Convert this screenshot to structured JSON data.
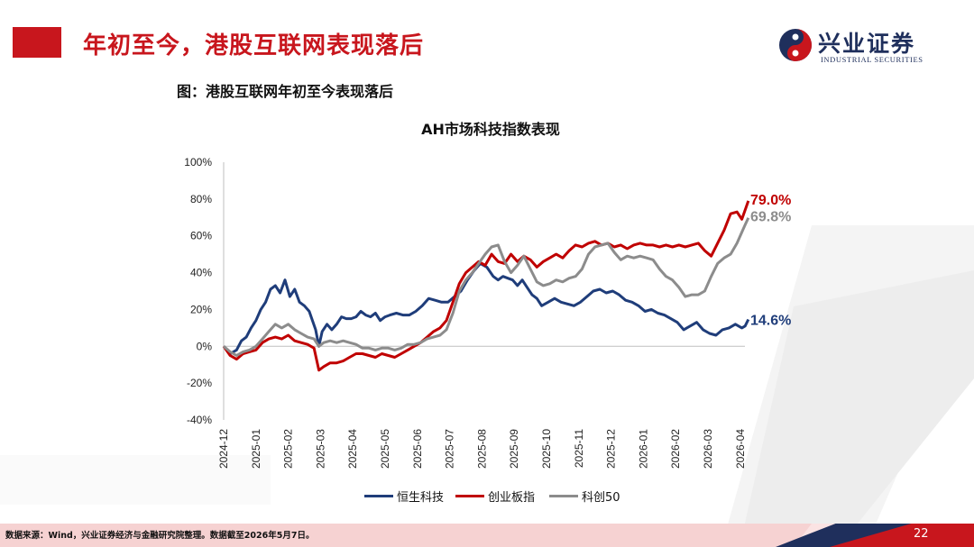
{
  "header": {
    "title": "年初至今，港股互联网表现落后",
    "logo_cn": "兴业证券",
    "logo_en": "INDUSTRIAL SECURITIES"
  },
  "figure_label": "图：港股互联网年初至今表现落后",
  "colors": {
    "brand_red": "#c8161d",
    "navy": "#1f3d7a",
    "red_series": "#c00000",
    "gray_series": "#8c8c8c"
  },
  "chart_data": {
    "type": "line",
    "title": "AH市场科技指数表现",
    "ylim": [
      -40,
      100
    ],
    "yticks": [
      "100%",
      "80%",
      "60%",
      "40%",
      "20%",
      "0%",
      "-20%",
      "-40%"
    ],
    "ytick_values": [
      100,
      80,
      60,
      40,
      20,
      0,
      -20,
      -40
    ],
    "xticks": [
      "2024-12",
      "2025-01",
      "2025-02",
      "2025-03",
      "2025-04",
      "2025-05",
      "2025-06",
      "2025-07",
      "2025-08",
      "2025-09",
      "2025-10",
      "2025-11",
      "2025-12",
      "2026-01",
      "2026-02",
      "2026-03",
      "2026-04"
    ],
    "grid": false,
    "legend_position": "bottom",
    "series": [
      {
        "name": "恒生科技",
        "color": "#1f3d7a",
        "end_label": "14.6%",
        "points": [
          [
            0,
            0
          ],
          [
            0.2,
            -4
          ],
          [
            0.4,
            -2
          ],
          [
            0.55,
            3
          ],
          [
            0.7,
            5
          ],
          [
            0.85,
            10
          ],
          [
            1.0,
            14
          ],
          [
            1.15,
            20
          ],
          [
            1.3,
            24
          ],
          [
            1.45,
            31
          ],
          [
            1.6,
            33
          ],
          [
            1.75,
            29
          ],
          [
            1.9,
            36
          ],
          [
            2.05,
            27
          ],
          [
            2.2,
            31
          ],
          [
            2.35,
            24
          ],
          [
            2.5,
            22
          ],
          [
            2.65,
            19
          ],
          [
            2.85,
            9
          ],
          [
            2.95,
            0
          ],
          [
            3.05,
            8
          ],
          [
            3.2,
            12
          ],
          [
            3.35,
            9
          ],
          [
            3.5,
            12
          ],
          [
            3.65,
            16
          ],
          [
            3.8,
            15
          ],
          [
            3.95,
            15
          ],
          [
            4.1,
            16
          ],
          [
            4.25,
            19
          ],
          [
            4.4,
            17
          ],
          [
            4.55,
            16
          ],
          [
            4.7,
            18
          ],
          [
            4.85,
            14
          ],
          [
            5.0,
            16
          ],
          [
            5.15,
            17
          ],
          [
            5.35,
            18
          ],
          [
            5.55,
            17
          ],
          [
            5.75,
            17
          ],
          [
            5.95,
            19
          ],
          [
            6.15,
            22
          ],
          [
            6.35,
            26
          ],
          [
            6.55,
            25
          ],
          [
            6.75,
            24
          ],
          [
            6.95,
            24
          ],
          [
            7.15,
            27
          ],
          [
            7.35,
            30
          ],
          [
            7.55,
            36
          ],
          [
            7.75,
            41
          ],
          [
            7.95,
            45
          ],
          [
            8.15,
            43
          ],
          [
            8.35,
            38
          ],
          [
            8.5,
            36
          ],
          [
            8.65,
            38
          ],
          [
            8.8,
            37
          ],
          [
            8.95,
            36
          ],
          [
            9.1,
            33
          ],
          [
            9.25,
            36
          ],
          [
            9.4,
            32
          ],
          [
            9.55,
            28
          ],
          [
            9.7,
            26
          ],
          [
            9.85,
            22
          ],
          [
            10.05,
            24
          ],
          [
            10.25,
            26
          ],
          [
            10.45,
            24
          ],
          [
            10.65,
            23
          ],
          [
            10.85,
            22
          ],
          [
            11.05,
            24
          ],
          [
            11.25,
            27
          ],
          [
            11.45,
            30
          ],
          [
            11.65,
            31
          ],
          [
            11.85,
            29
          ],
          [
            12.05,
            30
          ],
          [
            12.25,
            28
          ],
          [
            12.45,
            25
          ],
          [
            12.65,
            24
          ],
          [
            12.85,
            22
          ],
          [
            13.05,
            19
          ],
          [
            13.25,
            20
          ],
          [
            13.45,
            18
          ],
          [
            13.65,
            17
          ],
          [
            13.85,
            15
          ],
          [
            14.05,
            13
          ],
          [
            14.25,
            9
          ],
          [
            14.45,
            11
          ],
          [
            14.65,
            13
          ],
          [
            14.85,
            9
          ],
          [
            15.05,
            7
          ],
          [
            15.25,
            6
          ],
          [
            15.45,
            9
          ],
          [
            15.65,
            10
          ],
          [
            15.85,
            12
          ],
          [
            16.05,
            10
          ],
          [
            16.15,
            11
          ],
          [
            16.25,
            14.6
          ]
        ]
      },
      {
        "name": "创业板指",
        "color": "#c00000",
        "end_label": "79.0%",
        "points": [
          [
            0,
            0
          ],
          [
            0.2,
            -5
          ],
          [
            0.4,
            -7
          ],
          [
            0.6,
            -4
          ],
          [
            0.8,
            -3
          ],
          [
            1.0,
            -2
          ],
          [
            1.2,
            2
          ],
          [
            1.4,
            4
          ],
          [
            1.6,
            5
          ],
          [
            1.8,
            4
          ],
          [
            2.0,
            6
          ],
          [
            2.2,
            3
          ],
          [
            2.4,
            2
          ],
          [
            2.6,
            1
          ],
          [
            2.8,
            -1
          ],
          [
            2.95,
            -13
          ],
          [
            3.1,
            -11
          ],
          [
            3.3,
            -9
          ],
          [
            3.5,
            -9
          ],
          [
            3.7,
            -8
          ],
          [
            3.9,
            -6
          ],
          [
            4.1,
            -4
          ],
          [
            4.3,
            -4
          ],
          [
            4.5,
            -5
          ],
          [
            4.7,
            -6
          ],
          [
            4.9,
            -4
          ],
          [
            5.1,
            -5
          ],
          [
            5.3,
            -6
          ],
          [
            5.5,
            -4
          ],
          [
            5.7,
            -2
          ],
          [
            5.9,
            0
          ],
          [
            6.1,
            2
          ],
          [
            6.3,
            5
          ],
          [
            6.5,
            8
          ],
          [
            6.7,
            10
          ],
          [
            6.9,
            14
          ],
          [
            7.1,
            24
          ],
          [
            7.3,
            34
          ],
          [
            7.5,
            40
          ],
          [
            7.7,
            43
          ],
          [
            7.9,
            46
          ],
          [
            8.1,
            44
          ],
          [
            8.3,
            50
          ],
          [
            8.5,
            46
          ],
          [
            8.7,
            45
          ],
          [
            8.9,
            50
          ],
          [
            9.1,
            46
          ],
          [
            9.3,
            49
          ],
          [
            9.5,
            47
          ],
          [
            9.7,
            43
          ],
          [
            9.9,
            46
          ],
          [
            10.1,
            48
          ],
          [
            10.3,
            50
          ],
          [
            10.5,
            48
          ],
          [
            10.7,
            52
          ],
          [
            10.9,
            55
          ],
          [
            11.1,
            54
          ],
          [
            11.3,
            56
          ],
          [
            11.5,
            57
          ],
          [
            11.7,
            55
          ],
          [
            11.9,
            56
          ],
          [
            12.1,
            54
          ],
          [
            12.3,
            55
          ],
          [
            12.5,
            53
          ],
          [
            12.7,
            55
          ],
          [
            12.9,
            56
          ],
          [
            13.1,
            55
          ],
          [
            13.3,
            55
          ],
          [
            13.5,
            54
          ],
          [
            13.7,
            55
          ],
          [
            13.9,
            54
          ],
          [
            14.1,
            55
          ],
          [
            14.3,
            54
          ],
          [
            14.5,
            55
          ],
          [
            14.7,
            56
          ],
          [
            14.9,
            52
          ],
          [
            15.1,
            49
          ],
          [
            15.3,
            56
          ],
          [
            15.5,
            63
          ],
          [
            15.7,
            72
          ],
          [
            15.9,
            73
          ],
          [
            16.05,
            69
          ],
          [
            16.15,
            74
          ],
          [
            16.25,
            79
          ]
        ]
      },
      {
        "name": "科创50",
        "color": "#8c8c8c",
        "end_label": "69.8%",
        "points": [
          [
            0,
            0
          ],
          [
            0.2,
            -3
          ],
          [
            0.4,
            -5
          ],
          [
            0.6,
            -3
          ],
          [
            0.8,
            -2
          ],
          [
            1.0,
            0
          ],
          [
            1.2,
            4
          ],
          [
            1.4,
            8
          ],
          [
            1.6,
            12
          ],
          [
            1.8,
            10
          ],
          [
            2.0,
            12
          ],
          [
            2.2,
            9
          ],
          [
            2.4,
            7
          ],
          [
            2.6,
            5
          ],
          [
            2.8,
            4
          ],
          [
            2.95,
            0
          ],
          [
            3.1,
            2
          ],
          [
            3.3,
            3
          ],
          [
            3.5,
            2
          ],
          [
            3.7,
            3
          ],
          [
            3.9,
            2
          ],
          [
            4.1,
            1
          ],
          [
            4.3,
            -1
          ],
          [
            4.5,
            -1
          ],
          [
            4.7,
            -2
          ],
          [
            4.9,
            -1
          ],
          [
            5.1,
            -1
          ],
          [
            5.3,
            -2
          ],
          [
            5.5,
            -1
          ],
          [
            5.7,
            1
          ],
          [
            5.9,
            1
          ],
          [
            6.1,
            2
          ],
          [
            6.3,
            4
          ],
          [
            6.5,
            5
          ],
          [
            6.7,
            6
          ],
          [
            6.9,
            9
          ],
          [
            7.1,
            18
          ],
          [
            7.3,
            30
          ],
          [
            7.5,
            36
          ],
          [
            7.7,
            40
          ],
          [
            7.9,
            45
          ],
          [
            8.1,
            50
          ],
          [
            8.3,
            54
          ],
          [
            8.5,
            55
          ],
          [
            8.7,
            46
          ],
          [
            8.9,
            40
          ],
          [
            9.1,
            44
          ],
          [
            9.3,
            49
          ],
          [
            9.5,
            42
          ],
          [
            9.7,
            35
          ],
          [
            9.9,
            33
          ],
          [
            10.1,
            34
          ],
          [
            10.3,
            36
          ],
          [
            10.5,
            35
          ],
          [
            10.7,
            37
          ],
          [
            10.9,
            38
          ],
          [
            11.1,
            42
          ],
          [
            11.3,
            50
          ],
          [
            11.5,
            54
          ],
          [
            11.7,
            55
          ],
          [
            11.9,
            56
          ],
          [
            12.1,
            51
          ],
          [
            12.3,
            47
          ],
          [
            12.5,
            49
          ],
          [
            12.7,
            48
          ],
          [
            12.9,
            49
          ],
          [
            13.1,
            48
          ],
          [
            13.3,
            47
          ],
          [
            13.5,
            42
          ],
          [
            13.7,
            38
          ],
          [
            13.9,
            36
          ],
          [
            14.1,
            32
          ],
          [
            14.3,
            27
          ],
          [
            14.5,
            28
          ],
          [
            14.7,
            28
          ],
          [
            14.9,
            30
          ],
          [
            15.1,
            38
          ],
          [
            15.3,
            45
          ],
          [
            15.5,
            48
          ],
          [
            15.7,
            50
          ],
          [
            15.9,
            56
          ],
          [
            16.05,
            62
          ],
          [
            16.15,
            66
          ],
          [
            16.25,
            69.8
          ]
        ]
      }
    ]
  },
  "footer": {
    "source": "数据来源：Wind，兴业证券经济与金融研究院整理。数据截至2026年5月7日。",
    "page": "22"
  }
}
